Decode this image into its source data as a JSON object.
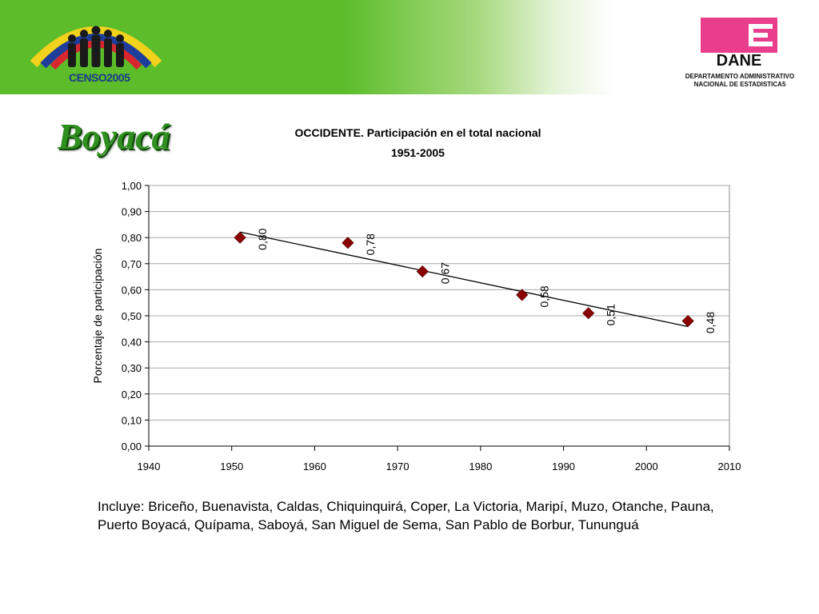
{
  "header": {
    "censo_logo_text": "CENSO2005",
    "dane_logo_text": "DANE",
    "dane_caption_line1": "DEPARTAMENTO ADMINISTRATIVO",
    "dane_caption_line2": "NACIONAL DE ESTADISTICA5",
    "colors": {
      "banner_green": "#5cbc2a",
      "dane_magenta": "#e83e8c"
    }
  },
  "page_title": "Boyacá",
  "chart_data": {
    "type": "scatter",
    "title_line1": "OCCIDENTE. Participación en el total nacional",
    "title_line2": "1951-2005",
    "xlabel": "",
    "ylabel": "Porcentaje de participación",
    "xlim": [
      1940,
      2010
    ],
    "ylim": [
      0.0,
      1.0
    ],
    "x_ticks": [
      1940,
      1950,
      1960,
      1970,
      1980,
      1990,
      2000,
      2010
    ],
    "y_ticks": [
      0.0,
      0.1,
      0.2,
      0.3,
      0.4,
      0.5,
      0.6,
      0.7,
      0.8,
      0.9,
      1.0
    ],
    "y_tick_labels": [
      "0,00",
      "0,10",
      "0,20",
      "0,30",
      "0,40",
      "0,50",
      "0,60",
      "0,70",
      "0,80",
      "0,90",
      "1,00"
    ],
    "grid": "horizontal",
    "legend": "none",
    "marker": "diamond",
    "marker_color": "#8b0000",
    "trendline": {
      "type": "linear",
      "color": "#000000"
    },
    "points": [
      {
        "x": 1951,
        "y": 0.8,
        "label": "0,80"
      },
      {
        "x": 1964,
        "y": 0.78,
        "label": "0,78"
      },
      {
        "x": 1973,
        "y": 0.67,
        "label": "0,67"
      },
      {
        "x": 1985,
        "y": 0.58,
        "label": "0,58"
      },
      {
        "x": 1993,
        "y": 0.51,
        "label": "0,51"
      },
      {
        "x": 2005,
        "y": 0.48,
        "label": "0,48"
      }
    ]
  },
  "note": "Incluye: Briceño, Buenavista, Caldas, Chiquinquirá, Coper, La Victoria, Maripí, Muzo, Otanche, Pauna, Puerto Boyacá, Quípama, Saboyá, San Miguel de Sema, San Pablo de Borbur, Tununguá"
}
